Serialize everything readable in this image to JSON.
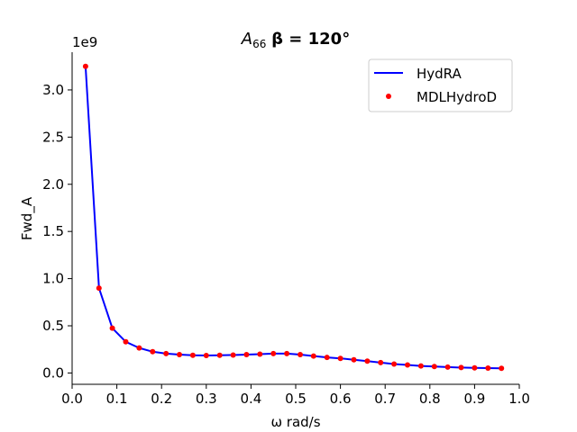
{
  "chart_data": {
    "type": "line",
    "title_symbol": "A",
    "title_subscript": "66",
    "title_rest": "β = 120°",
    "xlabel": "ω rad/s",
    "ylabel": "Fwd_A",
    "y_offset_label": "1e9",
    "xlim": [
      0.0,
      1.0
    ],
    "ylim": [
      -0.12,
      3.4
    ],
    "x_ticks": [
      0.0,
      0.1,
      0.2,
      0.3,
      0.4,
      0.5,
      0.6,
      0.7,
      0.8,
      0.9,
      1.0
    ],
    "x_tick_labels": [
      "0.0",
      "0.1",
      "0.2",
      "0.3",
      "0.4",
      "0.5",
      "0.6",
      "0.7",
      "0.8",
      "0.9",
      "1.0"
    ],
    "y_ticks": [
      0.0,
      0.5,
      1.0,
      1.5,
      2.0,
      2.5,
      3.0
    ],
    "y_tick_labels": [
      "0.0",
      "0.5",
      "1.0",
      "1.5",
      "2.0",
      "2.5",
      "3.0"
    ],
    "grid": false,
    "legend_position": "top-right",
    "x": [
      0.03,
      0.06,
      0.09,
      0.12,
      0.15,
      0.18,
      0.21,
      0.24,
      0.27,
      0.3,
      0.33,
      0.36,
      0.39,
      0.42,
      0.45,
      0.48,
      0.51,
      0.54,
      0.57,
      0.6,
      0.63,
      0.66,
      0.69,
      0.72,
      0.75,
      0.78,
      0.81,
      0.84,
      0.87,
      0.9,
      0.93,
      0.96
    ],
    "series": [
      {
        "name": "HydRA",
        "style": "line",
        "color": "#0000ff",
        "values": [
          3.25,
          0.9,
          0.475,
          0.33,
          0.265,
          0.225,
          0.205,
          0.195,
          0.188,
          0.185,
          0.188,
          0.19,
          0.195,
          0.2,
          0.205,
          0.205,
          0.195,
          0.18,
          0.165,
          0.155,
          0.14,
          0.125,
          0.11,
          0.095,
          0.085,
          0.075,
          0.068,
          0.062,
          0.057,
          0.054,
          0.052,
          0.05
        ]
      },
      {
        "name": "MDLHydroD",
        "style": "points",
        "color": "#ff0000",
        "values": [
          3.25,
          0.9,
          0.475,
          0.33,
          0.265,
          0.225,
          0.205,
          0.195,
          0.188,
          0.185,
          0.188,
          0.19,
          0.195,
          0.2,
          0.205,
          0.205,
          0.195,
          0.18,
          0.165,
          0.155,
          0.14,
          0.125,
          0.11,
          0.095,
          0.085,
          0.075,
          0.068,
          0.062,
          0.057,
          0.054,
          0.052,
          0.05
        ]
      }
    ]
  }
}
